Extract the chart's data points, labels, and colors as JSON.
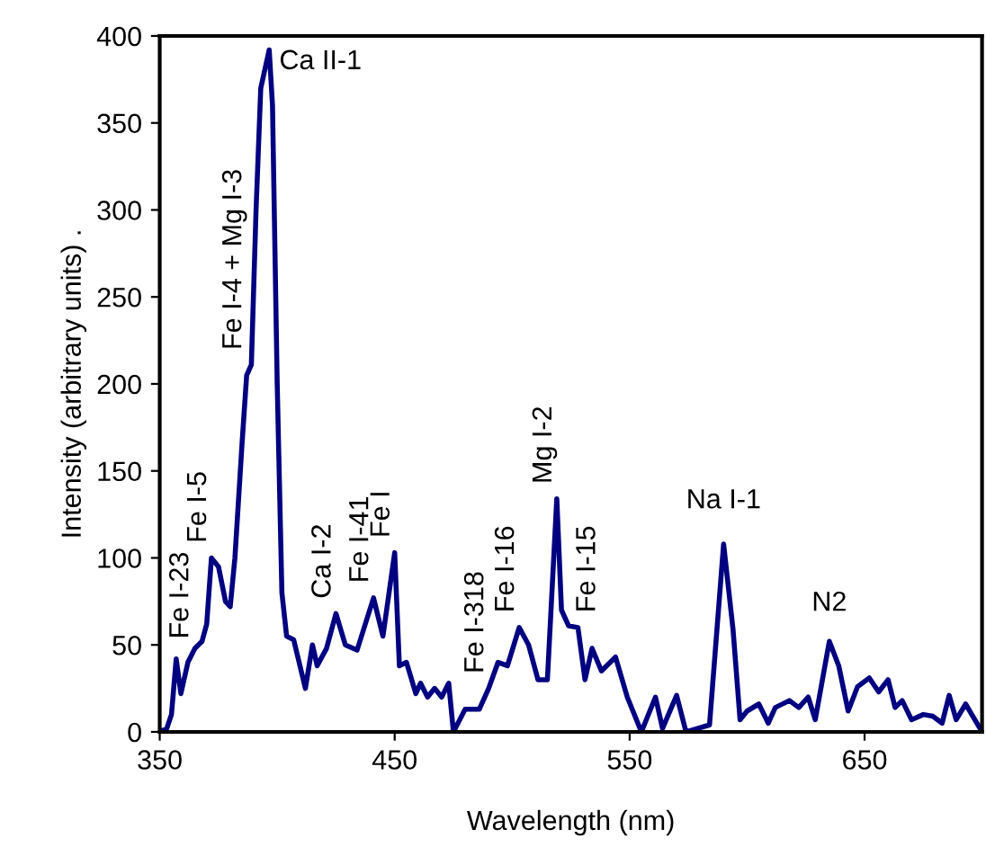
{
  "chart_data": {
    "type": "line",
    "xlabel": "Wavelength (nm)",
    "ylabel": "Intensity (arbitrary units) .",
    "xlim": [
      350,
      700
    ],
    "xticks": [
      350,
      450,
      550,
      650
    ],
    "ylim": [
      0,
      400
    ],
    "yticks": [
      0,
      50,
      100,
      150,
      200,
      250,
      300,
      350,
      400
    ],
    "grid": false,
    "legend": false,
    "marker": "none",
    "line_style": "solid",
    "series": [
      {
        "color": "#000080",
        "x": [
          350,
          353,
          355,
          357,
          359,
          362,
          365,
          368,
          370,
          372,
          375,
          378,
          380,
          382,
          385,
          387,
          389,
          391,
          393,
          396.6,
          398,
          400,
          402,
          404,
          407,
          412,
          415,
          417,
          421,
          425,
          429,
          434,
          441,
          445,
          450,
          452,
          455,
          459,
          461,
          464,
          467,
          470,
          473,
          475,
          480,
          486,
          490,
          494,
          498,
          503,
          507,
          511,
          515,
          519,
          521,
          524,
          528,
          531,
          534,
          538,
          544,
          549,
          555,
          561,
          564,
          570,
          574,
          584,
          590,
          594,
          597,
          600,
          605,
          609,
          612,
          618,
          622,
          626,
          629,
          635,
          639,
          643,
          647,
          652,
          656,
          660,
          663,
          666,
          670,
          675,
          679,
          683,
          686,
          689,
          693,
          700
        ],
        "values": [
          0,
          2,
          10,
          42,
          22,
          40,
          48,
          52,
          62,
          100,
          95,
          75,
          72,
          100,
          165,
          205,
          211,
          300,
          370,
          392,
          360,
          200,
          80,
          55,
          53,
          25,
          50,
          38,
          48,
          68,
          50,
          47,
          77,
          55,
          103,
          38,
          40,
          22,
          28,
          20,
          25,
          20,
          28,
          0,
          13,
          13,
          25,
          40,
          38,
          60,
          50,
          30,
          30,
          134,
          70,
          61,
          60,
          30,
          48,
          35,
          43,
          20,
          0,
          20,
          2,
          21,
          0,
          4,
          108,
          59,
          7,
          12,
          16,
          5,
          14,
          18,
          14,
          20,
          7,
          52,
          38,
          12,
          26,
          31,
          23,
          30,
          14,
          18,
          7,
          10,
          9,
          5,
          21,
          7,
          16,
          0
        ]
      }
    ],
    "annotations": [
      {
        "text": "Fe I-23",
        "x": 357,
        "y": 42
      },
      {
        "text": "Fe I-5",
        "x": 372,
        "y": 100
      },
      {
        "text": "Fe I-4 + Mg I-3",
        "x": 387,
        "y": 211
      },
      {
        "text": "Ca II-1",
        "x": 396.6,
        "y": 392
      },
      {
        "text": "Ca I-2",
        "x": 425,
        "y": 68
      },
      {
        "text": "Fe I-41",
        "x": 441,
        "y": 77
      },
      {
        "text": "Fe I",
        "x": 450,
        "y": 103
      },
      {
        "text": "Fe I-318",
        "x": 490,
        "y": 25
      },
      {
        "text": "Fe I-16",
        "x": 503,
        "y": 60
      },
      {
        "text": "Mg I-2",
        "x": 519,
        "y": 134
      },
      {
        "text": "Fe I-15",
        "x": 528,
        "y": 60
      },
      {
        "text": "Na I-1",
        "x": 590,
        "y": 108
      },
      {
        "text": "N2",
        "x": 635,
        "y": 52
      }
    ]
  }
}
